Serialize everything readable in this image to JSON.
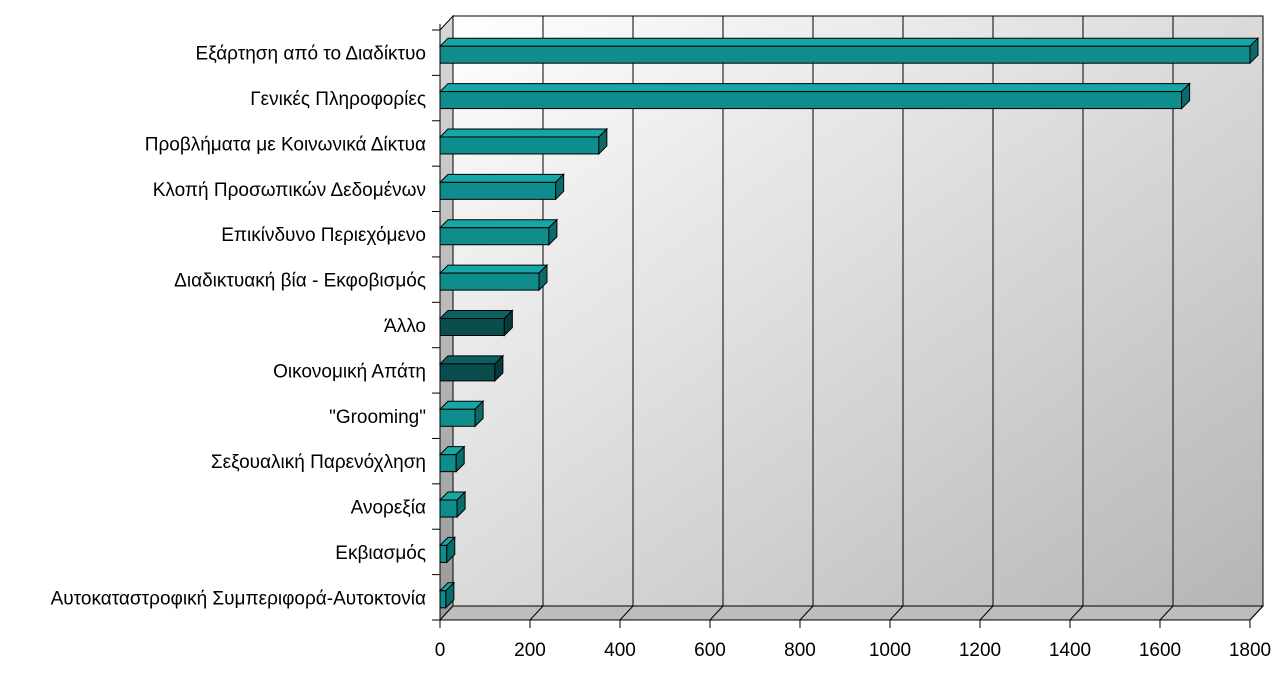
{
  "chart_data": {
    "type": "bar",
    "orientation": "horizontal",
    "style": "3d",
    "title": "",
    "xlabel": "",
    "ylabel": "",
    "xlim": [
      0,
      1800
    ],
    "xticks": [
      "0",
      "200",
      "400",
      "600",
      "800",
      "1000",
      "1200",
      "1400",
      "1600",
      "1800"
    ],
    "grid": "vertical",
    "legend": "none",
    "categories": [
      "Εξάρτηση από το Διαδίκτυο",
      "Γενικές Πληροφορίες",
      "Προβλήματα με Κοινωνικά Δίκτυα",
      "Κλοπή Προσωπικών Δεδομένων",
      "Επικίνδυνο Περιεχόμενο",
      "Διαδικτυακή βία - Εκφοβισμός",
      "Άλλο",
      "Οικονομική Απάτη",
      "\"Grooming\"",
      "Σεξουαλική Παρενόχληση",
      "Ανορεξία",
      "Εκβιασμός",
      "Αυτοκαταστροφική Συμπεριφορά-Αυτοκτονία"
    ],
    "values": [
      1800,
      1648,
      353,
      257,
      242,
      220,
      143,
      122,
      78,
      36,
      38,
      15,
      13
    ],
    "colors": {
      "bar_front": "#0f8c8c",
      "bar_dark": "#0a4d4d",
      "outline": "#000000",
      "wall_back": "#cfcfcf",
      "wall_side": "#a6a6a6",
      "floor": "#bdbdbd"
    },
    "dark_bar_indices": [
      6,
      7
    ]
  }
}
